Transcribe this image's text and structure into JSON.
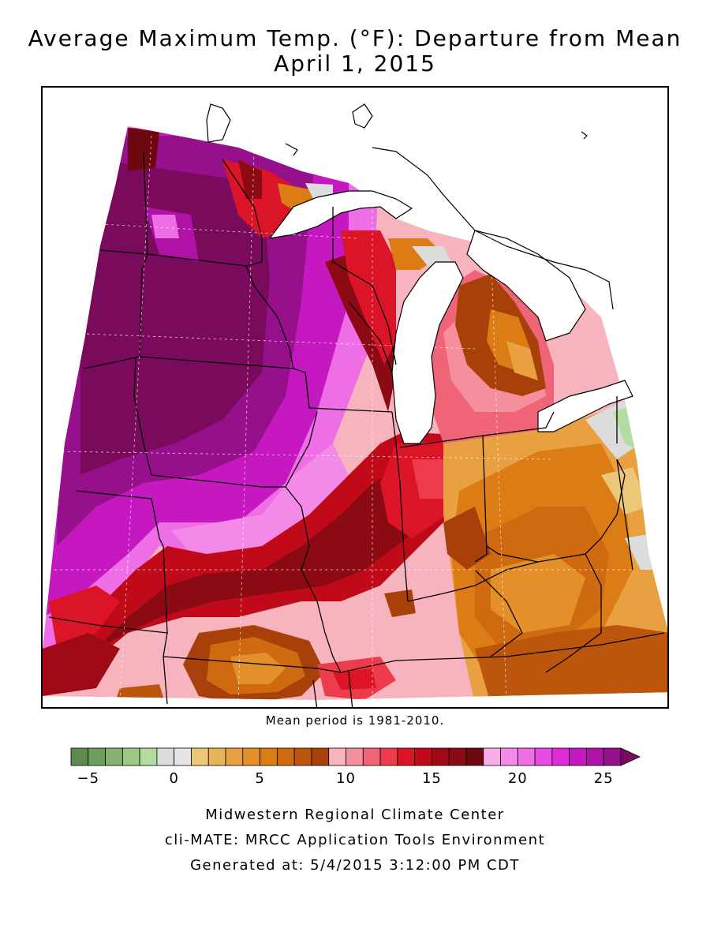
{
  "title": {
    "line1": "Average Maximum Temp. (°F): Departure from Mean",
    "line2": "April 1, 2015"
  },
  "map": {
    "region": "Midwest United States",
    "palette": {
      "deep_purple": "#7a0a5c",
      "purple": "#96108c",
      "magenta": "#d020c8",
      "pink_magenta": "#ee5ae6",
      "light_pink": "#f8aee8",
      "dark_red": "#8c0a14",
      "red": "#dc1428",
      "salmon": "#f06478",
      "pink": "#f8b4be",
      "brown": "#a8400a",
      "orange": "#dc7c14",
      "light_orange": "#e8a040",
      "tan": "#eac878",
      "grey": "#dcdcdc",
      "light_green": "#b4dca0"
    }
  },
  "mean_note": "Mean period is 1981-2010.",
  "legend": {
    "colors": [
      "#5e8a4e",
      "#6e9e5e",
      "#86b272",
      "#9cc886",
      "#b4dca0",
      "#dcdcdc",
      "#e6e6e6",
      "#eac878",
      "#e8b45a",
      "#e8a040",
      "#e4902a",
      "#dc7c14",
      "#d06a10",
      "#bc560c",
      "#a8400a",
      "#f8b4be",
      "#f4909e",
      "#f06478",
      "#ec3c4c",
      "#dc1428",
      "#c00a1a",
      "#a00a16",
      "#8c0a14",
      "#6e0810",
      "#f8aee8",
      "#f48ae8",
      "#ee6ee6",
      "#ea4ae2",
      "#e02ad8",
      "#c618c0",
      "#ae12a6",
      "#96108c"
    ],
    "arrow_color": "#7a0a5c",
    "ticks": [
      "−5",
      "0",
      "5",
      "10",
      "15",
      "20",
      "25"
    ],
    "tick_values": [
      -5,
      0,
      5,
      10,
      15,
      20,
      25
    ]
  },
  "credits": {
    "line1": "Midwestern Regional Climate Center",
    "line2": "cli-MATE: MRCC Application Tools Environment",
    "line3": "Generated at: 5/4/2015 3:12:00 PM CDT"
  }
}
